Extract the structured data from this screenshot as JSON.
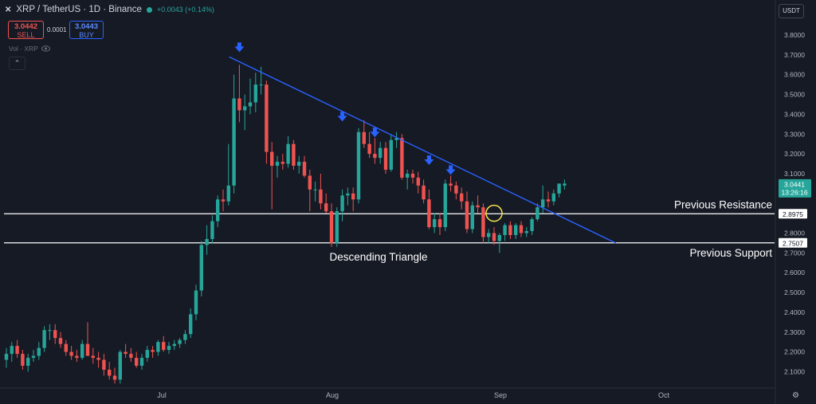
{
  "header": {
    "symbol_icon": "xrp-logo",
    "title": "XRP / TetherUS · 1D · Binance",
    "change": "+0.0043 (+0.14%)"
  },
  "trade": {
    "sell_price": "3.0442",
    "sell_label": "SELL",
    "spread": "0.0001",
    "buy_price": "3.0443",
    "buy_label": "BUY"
  },
  "volume_label": "Vol · XRP",
  "currency": "USDT",
  "last_price": {
    "value": "3.0441",
    "countdown": "13:26:16"
  },
  "chart_data": {
    "type": "candlestick",
    "x_tick_labels": [
      "Jul",
      "Aug",
      "Sep",
      "Oct"
    ],
    "y_tick_labels": [
      "3.8000",
      "3.7000",
      "3.6000",
      "3.5000",
      "3.4000",
      "3.3000",
      "3.2000",
      "3.1000",
      "3.0000",
      "2.9000",
      "2.8000",
      "2.7000",
      "2.6000",
      "2.5000",
      "2.4000",
      "2.3000",
      "2.2000",
      "2.1000"
    ],
    "ylim": [
      2.03,
      3.87
    ],
    "grid": false,
    "candles": [
      {
        "o": 2.16,
        "h": 2.22,
        "l": 2.12,
        "c": 2.19
      },
      {
        "o": 2.19,
        "h": 2.25,
        "l": 2.15,
        "c": 2.23
      },
      {
        "o": 2.23,
        "h": 2.26,
        "l": 2.17,
        "c": 2.19
      },
      {
        "o": 2.19,
        "h": 2.21,
        "l": 2.11,
        "c": 2.13
      },
      {
        "o": 2.13,
        "h": 2.19,
        "l": 2.1,
        "c": 2.17
      },
      {
        "o": 2.17,
        "h": 2.21,
        "l": 2.15,
        "c": 2.18
      },
      {
        "o": 2.18,
        "h": 2.25,
        "l": 2.16,
        "c": 2.22
      },
      {
        "o": 2.22,
        "h": 2.33,
        "l": 2.2,
        "c": 2.31
      },
      {
        "o": 2.31,
        "h": 2.34,
        "l": 2.26,
        "c": 2.31
      },
      {
        "o": 2.31,
        "h": 2.34,
        "l": 2.24,
        "c": 2.27
      },
      {
        "o": 2.27,
        "h": 2.3,
        "l": 2.22,
        "c": 2.24
      },
      {
        "o": 2.24,
        "h": 2.26,
        "l": 2.18,
        "c": 2.2
      },
      {
        "o": 2.2,
        "h": 2.23,
        "l": 2.16,
        "c": 2.18
      },
      {
        "o": 2.18,
        "h": 2.21,
        "l": 2.15,
        "c": 2.17
      },
      {
        "o": 2.17,
        "h": 2.26,
        "l": 2.16,
        "c": 2.24
      },
      {
        "o": 2.24,
        "h": 2.35,
        "l": 2.18,
        "c": 2.18
      },
      {
        "o": 2.18,
        "h": 2.22,
        "l": 2.14,
        "c": 2.17
      },
      {
        "o": 2.17,
        "h": 2.2,
        "l": 2.12,
        "c": 2.16
      },
      {
        "o": 2.16,
        "h": 2.19,
        "l": 2.08,
        "c": 2.11
      },
      {
        "o": 2.11,
        "h": 2.15,
        "l": 2.06,
        "c": 2.08
      },
      {
        "o": 2.08,
        "h": 2.12,
        "l": 2.04,
        "c": 2.06
      },
      {
        "o": 2.06,
        "h": 2.21,
        "l": 2.04,
        "c": 2.2
      },
      {
        "o": 2.2,
        "h": 2.24,
        "l": 2.17,
        "c": 2.19
      },
      {
        "o": 2.19,
        "h": 2.22,
        "l": 2.15,
        "c": 2.17
      },
      {
        "o": 2.17,
        "h": 2.2,
        "l": 2.12,
        "c": 2.13
      },
      {
        "o": 2.13,
        "h": 2.19,
        "l": 2.11,
        "c": 2.17
      },
      {
        "o": 2.17,
        "h": 2.23,
        "l": 2.15,
        "c": 2.21
      },
      {
        "o": 2.21,
        "h": 2.23,
        "l": 2.17,
        "c": 2.2
      },
      {
        "o": 2.2,
        "h": 2.26,
        "l": 2.18,
        "c": 2.25
      },
      {
        "o": 2.25,
        "h": 2.28,
        "l": 2.2,
        "c": 2.21
      },
      {
        "o": 2.21,
        "h": 2.25,
        "l": 2.19,
        "c": 2.23
      },
      {
        "o": 2.23,
        "h": 2.26,
        "l": 2.21,
        "c": 2.24
      },
      {
        "o": 2.24,
        "h": 2.27,
        "l": 2.22,
        "c": 2.26
      },
      {
        "o": 2.26,
        "h": 2.31,
        "l": 2.24,
        "c": 2.29
      },
      {
        "o": 2.29,
        "h": 2.42,
        "l": 2.27,
        "c": 2.39
      },
      {
        "o": 2.39,
        "h": 2.54,
        "l": 2.36,
        "c": 2.51
      },
      {
        "o": 2.51,
        "h": 2.76,
        "l": 2.48,
        "c": 2.74
      },
      {
        "o": 2.74,
        "h": 2.84,
        "l": 2.69,
        "c": 2.77
      },
      {
        "o": 2.77,
        "h": 2.89,
        "l": 2.75,
        "c": 2.86
      },
      {
        "o": 2.86,
        "h": 2.99,
        "l": 2.83,
        "c": 2.97
      },
      {
        "o": 2.97,
        "h": 3.02,
        "l": 2.91,
        "c": 2.96
      },
      {
        "o": 2.96,
        "h": 3.25,
        "l": 2.94,
        "c": 3.04
      },
      {
        "o": 3.04,
        "h": 3.6,
        "l": 3.0,
        "c": 3.48
      },
      {
        "o": 3.48,
        "h": 3.65,
        "l": 3.36,
        "c": 3.42
      },
      {
        "o": 3.42,
        "h": 3.5,
        "l": 3.32,
        "c": 3.44
      },
      {
        "o": 3.44,
        "h": 3.58,
        "l": 3.4,
        "c": 3.46
      },
      {
        "o": 3.46,
        "h": 3.61,
        "l": 3.41,
        "c": 3.55
      },
      {
        "o": 3.55,
        "h": 3.64,
        "l": 3.5,
        "c": 3.55
      },
      {
        "o": 3.55,
        "h": 3.57,
        "l": 3.15,
        "c": 3.21
      },
      {
        "o": 3.21,
        "h": 3.26,
        "l": 2.92,
        "c": 3.14
      },
      {
        "o": 3.14,
        "h": 3.19,
        "l": 3.08,
        "c": 3.16
      },
      {
        "o": 3.16,
        "h": 3.2,
        "l": 3.12,
        "c": 3.15
      },
      {
        "o": 3.15,
        "h": 3.29,
        "l": 3.13,
        "c": 3.25
      },
      {
        "o": 3.25,
        "h": 3.27,
        "l": 3.12,
        "c": 3.14
      },
      {
        "o": 3.14,
        "h": 3.19,
        "l": 3.1,
        "c": 3.16
      },
      {
        "o": 3.16,
        "h": 3.19,
        "l": 3.08,
        "c": 3.09
      },
      {
        "o": 3.09,
        "h": 3.12,
        "l": 2.91,
        "c": 3.02
      },
      {
        "o": 3.02,
        "h": 3.06,
        "l": 2.96,
        "c": 3.02
      },
      {
        "o": 3.02,
        "h": 3.1,
        "l": 2.92,
        "c": 2.95
      },
      {
        "o": 2.95,
        "h": 3.0,
        "l": 2.9,
        "c": 2.91
      },
      {
        "o": 2.91,
        "h": 2.95,
        "l": 2.73,
        "c": 2.75
      },
      {
        "o": 2.75,
        "h": 2.93,
        "l": 2.73,
        "c": 2.91
      },
      {
        "o": 2.91,
        "h": 3.02,
        "l": 2.86,
        "c": 2.99
      },
      {
        "o": 2.99,
        "h": 3.03,
        "l": 2.94,
        "c": 3.0
      },
      {
        "o": 3.0,
        "h": 3.03,
        "l": 2.91,
        "c": 2.97
      },
      {
        "o": 2.97,
        "h": 3.33,
        "l": 2.95,
        "c": 3.31
      },
      {
        "o": 3.31,
        "h": 3.37,
        "l": 3.23,
        "c": 3.25
      },
      {
        "o": 3.25,
        "h": 3.31,
        "l": 3.18,
        "c": 3.2
      },
      {
        "o": 3.2,
        "h": 3.28,
        "l": 3.15,
        "c": 3.18
      },
      {
        "o": 3.18,
        "h": 3.26,
        "l": 3.15,
        "c": 3.23
      },
      {
        "o": 3.23,
        "h": 3.26,
        "l": 3.1,
        "c": 3.12
      },
      {
        "o": 3.12,
        "h": 3.3,
        "l": 3.11,
        "c": 3.27
      },
      {
        "o": 3.27,
        "h": 3.31,
        "l": 3.23,
        "c": 3.28
      },
      {
        "o": 3.28,
        "h": 3.3,
        "l": 3.07,
        "c": 3.08
      },
      {
        "o": 3.08,
        "h": 3.12,
        "l": 3.02,
        "c": 3.1
      },
      {
        "o": 3.1,
        "h": 3.12,
        "l": 3.05,
        "c": 3.08
      },
      {
        "o": 3.08,
        "h": 3.11,
        "l": 3.0,
        "c": 3.04
      },
      {
        "o": 3.04,
        "h": 3.07,
        "l": 2.95,
        "c": 2.97
      },
      {
        "o": 2.97,
        "h": 3.02,
        "l": 2.82,
        "c": 2.83
      },
      {
        "o": 2.83,
        "h": 2.9,
        "l": 2.8,
        "c": 2.87
      },
      {
        "o": 2.87,
        "h": 2.9,
        "l": 2.79,
        "c": 2.83
      },
      {
        "o": 2.83,
        "h": 3.07,
        "l": 2.81,
        "c": 3.05
      },
      {
        "o": 3.05,
        "h": 3.09,
        "l": 3.01,
        "c": 3.04
      },
      {
        "o": 3.04,
        "h": 3.06,
        "l": 2.97,
        "c": 3.0
      },
      {
        "o": 3.0,
        "h": 3.03,
        "l": 2.92,
        "c": 2.96
      },
      {
        "o": 2.96,
        "h": 3.01,
        "l": 2.8,
        "c": 2.82
      },
      {
        "o": 2.82,
        "h": 2.96,
        "l": 2.8,
        "c": 2.94
      },
      {
        "o": 2.94,
        "h": 2.99,
        "l": 2.9,
        "c": 2.93
      },
      {
        "o": 2.93,
        "h": 2.95,
        "l": 2.75,
        "c": 2.78
      },
      {
        "o": 2.78,
        "h": 2.82,
        "l": 2.75,
        "c": 2.8
      },
      {
        "o": 2.8,
        "h": 2.83,
        "l": 2.74,
        "c": 2.76
      },
      {
        "o": 2.76,
        "h": 2.8,
        "l": 2.7,
        "c": 2.79
      },
      {
        "o": 2.79,
        "h": 2.85,
        "l": 2.76,
        "c": 2.84
      },
      {
        "o": 2.84,
        "h": 2.86,
        "l": 2.77,
        "c": 2.79
      },
      {
        "o": 2.79,
        "h": 2.85,
        "l": 2.77,
        "c": 2.84
      },
      {
        "o": 2.84,
        "h": 2.86,
        "l": 2.78,
        "c": 2.8
      },
      {
        "o": 2.8,
        "h": 2.83,
        "l": 2.78,
        "c": 2.81
      },
      {
        "o": 2.81,
        "h": 2.88,
        "l": 2.79,
        "c": 2.87
      },
      {
        "o": 2.87,
        "h": 2.95,
        "l": 2.86,
        "c": 2.93
      },
      {
        "o": 2.93,
        "h": 3.04,
        "l": 2.9,
        "c": 2.97
      },
      {
        "o": 2.97,
        "h": 3.01,
        "l": 2.93,
        "c": 2.96
      },
      {
        "o": 2.96,
        "h": 3.02,
        "l": 2.94,
        "c": 3.0
      },
      {
        "o": 3.0,
        "h": 3.05,
        "l": 2.98,
        "c": 3.05
      },
      {
        "o": 3.04,
        "h": 3.07,
        "l": 3.02,
        "c": 3.05
      }
    ],
    "trendline": {
      "from": {
        "i": 42,
        "price": 3.69
      },
      "to": {
        "i": 112,
        "price": 2.75
      }
    },
    "lines": [
      {
        "price": 2.8975,
        "label": "2.8975",
        "annotation": "Previous Resistance"
      },
      {
        "price": 2.7507,
        "label": "2.7507",
        "annotation": "Previous Support"
      }
    ],
    "pattern_label": "Descending Triangle",
    "arrows": [
      {
        "i": 43,
        "price": 3.73
      },
      {
        "i": 62,
        "price": 3.38
      },
      {
        "i": 68,
        "price": 3.3
      },
      {
        "i": 78,
        "price": 3.16
      },
      {
        "i": 82,
        "price": 3.11
      }
    ],
    "breakout": {
      "i": 90,
      "price": 2.9
    }
  },
  "colors": {
    "up": "#26a69a",
    "down": "#ef5350",
    "trend": "#2962ff",
    "arrow": "#2962ff",
    "bg": "#161a25",
    "text": "#d1d4dc",
    "axis": "#b2b5be",
    "circle": "#f1e34d"
  },
  "icons": {
    "eye": "eye-icon",
    "collapse": "chevron-up-icon",
    "settings": "gear-icon"
  }
}
